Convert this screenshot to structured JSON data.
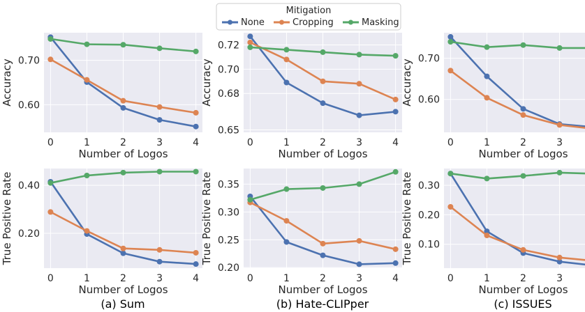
{
  "legend": {
    "title": "Mitigation",
    "entries": [
      "None",
      "Cropping",
      "Masking"
    ]
  },
  "colors": {
    "None": "#4c72b0",
    "Cropping": "#dd8452",
    "Masking": "#55a868",
    "panel_bg": "#eaeaf2",
    "grid": "#ffffff"
  },
  "chart_data": [
    {
      "type": "line",
      "panel": "(a) Sum",
      "metric": "Accuracy",
      "xlabel": "Number of Logos",
      "ylabel": "Accuracy",
      "x": [
        0,
        1,
        2,
        3,
        4
      ],
      "yticks": [
        "0.60",
        "0.70"
      ],
      "ylim": [
        0.538,
        0.762
      ],
      "series": [
        {
          "name": "None",
          "values": [
            0.752,
            0.651,
            0.593,
            0.566,
            0.551
          ]
        },
        {
          "name": "Cropping",
          "values": [
            0.702,
            0.656,
            0.609,
            0.595,
            0.582
          ]
        },
        {
          "name": "Masking",
          "values": [
            0.748,
            0.736,
            0.735,
            0.727,
            0.72
          ]
        }
      ]
    },
    {
      "type": "line",
      "panel": "(b) Hate-CLIPper",
      "metric": "Accuracy",
      "xlabel": "Number of Logos",
      "ylabel": "Accuracy",
      "x": [
        0,
        1,
        2,
        3,
        4
      ],
      "yticks": [
        "0.65",
        "0.68",
        "0.70",
        "0.72"
      ],
      "ylim": [
        0.648,
        0.73
      ],
      "series": [
        {
          "name": "None",
          "values": [
            0.727,
            0.689,
            0.672,
            0.662,
            0.665
          ]
        },
        {
          "name": "Cropping",
          "values": [
            0.722,
            0.708,
            0.69,
            0.688,
            0.675
          ]
        },
        {
          "name": "Masking",
          "values": [
            0.718,
            0.716,
            0.714,
            0.712,
            0.711
          ]
        }
      ]
    },
    {
      "type": "line",
      "panel": "(c) ISSUES",
      "metric": "Accuracy",
      "xlabel": "Number of Logos",
      "ylabel": "Accuracy",
      "x": [
        0,
        1,
        2,
        3,
        4
      ],
      "yticks": [
        "0.60",
        "0.70"
      ],
      "ylim": [
        0.52,
        0.762
      ],
      "series": [
        {
          "name": "None",
          "values": [
            0.752,
            0.656,
            0.577,
            0.54,
            0.532
          ]
        },
        {
          "name": "Cropping",
          "values": [
            0.67,
            0.604,
            0.562,
            0.538,
            0.528
          ]
        },
        {
          "name": "Masking",
          "values": [
            0.74,
            0.727,
            0.732,
            0.725,
            0.725
          ]
        }
      ]
    },
    {
      "type": "line",
      "panel": "(a) Sum",
      "metric": "True Positive Rate",
      "xlabel": "Number of Logos",
      "ylabel": "True Positive Rate",
      "x": [
        0,
        1,
        2,
        3,
        4
      ],
      "yticks": [
        "0.20",
        "0.40"
      ],
      "ylim": [
        0.055,
        0.47
      ],
      "series": [
        {
          "name": "None",
          "values": [
            0.415,
            0.197,
            0.117,
            0.082,
            0.072
          ]
        },
        {
          "name": "Cropping",
          "values": [
            0.289,
            0.21,
            0.137,
            0.131,
            0.119
          ]
        },
        {
          "name": "Masking",
          "values": [
            0.41,
            0.441,
            0.453,
            0.457,
            0.457
          ]
        }
      ]
    },
    {
      "type": "line",
      "panel": "(b) Hate-CLIPper",
      "metric": "True Positive Rate",
      "xlabel": "Number of Logos",
      "ylabel": "True Positive Rate",
      "x": [
        0,
        1,
        2,
        3,
        4
      ],
      "yticks": [
        "0.20",
        "0.25",
        "0.30",
        "0.35"
      ],
      "ylim": [
        0.199,
        0.378
      ],
      "series": [
        {
          "name": "None",
          "values": [
            0.328,
            0.246,
            0.222,
            0.206,
            0.208
          ]
        },
        {
          "name": "Cropping",
          "values": [
            0.317,
            0.284,
            0.243,
            0.248,
            0.233
          ]
        },
        {
          "name": "Masking",
          "values": [
            0.322,
            0.341,
            0.343,
            0.35,
            0.372
          ]
        }
      ]
    },
    {
      "type": "line",
      "panel": "(c) ISSUES",
      "metric": "True Positive Rate",
      "xlabel": "Number of Logos",
      "ylabel": "True Positive Rate",
      "x": [
        0,
        1,
        2,
        3,
        4
      ],
      "yticks": [
        "0.10",
        "0.20",
        "0.30"
      ],
      "ylim": [
        0.019,
        0.357
      ],
      "series": [
        {
          "name": "None",
          "values": [
            0.34,
            0.144,
            0.07,
            0.041,
            0.027
          ]
        },
        {
          "name": "Cropping",
          "values": [
            0.227,
            0.13,
            0.081,
            0.055,
            0.043
          ]
        },
        {
          "name": "Masking",
          "values": [
            0.34,
            0.323,
            0.332,
            0.343,
            0.339
          ]
        }
      ]
    }
  ],
  "captions": [
    "(a) Sum",
    "(b) Hate-CLIPper",
    "(c) ISSUES"
  ]
}
